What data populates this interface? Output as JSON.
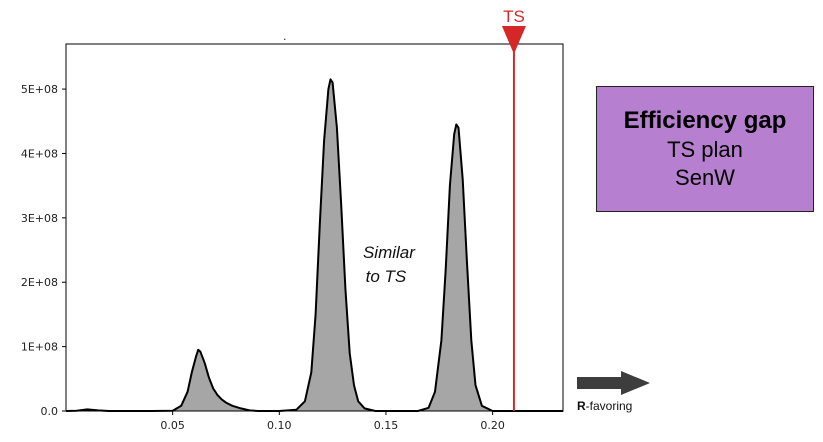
{
  "chart_data": {
    "type": "area",
    "title": "",
    "xlabel": "",
    "ylabel": "",
    "xlim": [
      0.0,
      0.233
    ],
    "ylim": [
      0,
      570000000
    ],
    "x_ticks": [
      0.05,
      0.1,
      0.15,
      0.2
    ],
    "x_tick_labels": [
      "0.05",
      "0.10",
      "0.15",
      "0.20"
    ],
    "y_ticks": [
      0,
      100000000,
      200000000,
      300000000,
      400000000,
      500000000
    ],
    "y_tick_labels": [
      "0.0",
      "1E+08",
      "2E+08",
      "3E+08",
      "4E+08",
      "5E+08"
    ],
    "fill_color": "#a6a6a6",
    "line_color": "#000000",
    "series": [
      {
        "x": [
          0.0,
          0.005,
          0.01,
          0.015,
          0.02,
          0.03,
          0.04,
          0.05,
          0.054,
          0.057,
          0.059,
          0.061,
          0.062,
          0.063,
          0.065,
          0.067,
          0.069,
          0.071,
          0.073,
          0.075,
          0.078,
          0.082,
          0.086,
          0.09,
          0.1,
          0.108,
          0.112,
          0.115,
          0.117,
          0.119,
          0.121,
          0.123,
          0.124,
          0.125,
          0.127,
          0.129,
          0.131,
          0.133,
          0.135,
          0.137,
          0.14,
          0.145,
          0.155,
          0.165,
          0.17,
          0.173,
          0.176,
          0.178,
          0.18,
          0.182,
          0.183,
          0.184,
          0.186,
          0.188,
          0.19,
          0.192,
          0.195,
          0.2,
          0.21,
          0.22,
          0.233
        ],
        "y": [
          0,
          500000,
          2500000,
          1000000,
          0,
          0,
          0,
          500000,
          8000000,
          30000000,
          60000000,
          85000000,
          95000000,
          92000000,
          75000000,
          52000000,
          35000000,
          25000000,
          18000000,
          13000000,
          8000000,
          4000000,
          1000000,
          0,
          0,
          2000000,
          15000000,
          60000000,
          150000000,
          290000000,
          420000000,
          500000000,
          515000000,
          510000000,
          440000000,
          320000000,
          190000000,
          90000000,
          40000000,
          15000000,
          4000000,
          0,
          0,
          0,
          5000000,
          30000000,
          110000000,
          220000000,
          350000000,
          430000000,
          445000000,
          440000000,
          360000000,
          230000000,
          110000000,
          40000000,
          8000000,
          0,
          0,
          0,
          0
        ]
      }
    ],
    "threshold_line": {
      "x": 0.21,
      "label": "TS",
      "color": "#d62728"
    },
    "annotation": {
      "line1": "Similar",
      "line2": "to TS",
      "x": 0.15,
      "y": 250000000
    },
    "small_mark": "."
  },
  "info_box": {
    "title": "Efficiency gap",
    "line1": "TS plan",
    "line2": "SenW",
    "background": "#b77fcf"
  },
  "direction": {
    "bold": "R",
    "rest": "-favoring",
    "arrow_color": "#3d3d3d"
  }
}
